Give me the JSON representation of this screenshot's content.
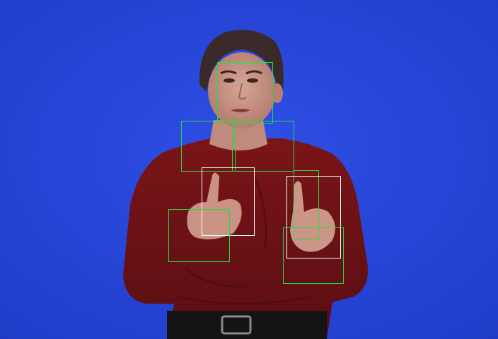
{
  "colors": {
    "background": "#2744d8",
    "sweater": "#6e1216",
    "skin": "#c89488",
    "hair": "#3a2a2a",
    "belt": "#141414",
    "box_green": "#22dd44",
    "box_white": "#ffffff"
  },
  "annotations": {
    "green_box_count": 6,
    "white_box_count": 2
  }
}
